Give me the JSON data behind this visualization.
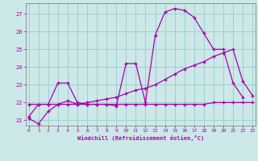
{
  "xlabel": "Windchill (Refroidissement éolien,°C)",
  "bg_color": "#cce8e8",
  "line_color": "#aa00aa",
  "grid_color": "#99cccc",
  "yticks": [
    21,
    22,
    23,
    24,
    25,
    26,
    27
  ],
  "xticks": [
    0,
    1,
    2,
    3,
    4,
    5,
    6,
    7,
    8,
    9,
    10,
    11,
    12,
    13,
    14,
    15,
    16,
    17,
    18,
    19,
    20,
    21,
    22,
    23
  ],
  "xlim": [
    -0.3,
    23.3
  ],
  "ylim": [
    20.7,
    27.6
  ],
  "line1_x": [
    0,
    1,
    2,
    3,
    4,
    5,
    6,
    7,
    8,
    9,
    10,
    11,
    12,
    13,
    14,
    15,
    16,
    17,
    18,
    19,
    20,
    21,
    22
  ],
  "line1_y": [
    21.2,
    21.9,
    21.9,
    23.1,
    23.1,
    22.0,
    21.9,
    21.9,
    21.9,
    21.8,
    24.2,
    24.2,
    22.0,
    25.8,
    27.1,
    27.3,
    27.2,
    26.8,
    25.9,
    25.0,
    25.0,
    23.1,
    22.3
  ],
  "line2_x": [
    0,
    1,
    2,
    3,
    4,
    5,
    6,
    7,
    8,
    9,
    10,
    11,
    12,
    13,
    14,
    15,
    16,
    17,
    18,
    19,
    20,
    21,
    22,
    23
  ],
  "line2_y": [
    21.9,
    21.9,
    21.9,
    21.9,
    21.9,
    21.9,
    21.9,
    21.9,
    21.9,
    21.9,
    21.9,
    21.9,
    21.9,
    21.9,
    21.9,
    21.9,
    21.9,
    21.9,
    21.9,
    22.0,
    22.0,
    22.0,
    22.0,
    22.0
  ],
  "line3_x": [
    0,
    1,
    2,
    3,
    4,
    5,
    6,
    7,
    8,
    9,
    10,
    11,
    12,
    13,
    14,
    15,
    16,
    17,
    18,
    19,
    20,
    21,
    22,
    23
  ],
  "line3_y": [
    21.1,
    20.8,
    21.5,
    21.9,
    22.1,
    21.9,
    22.0,
    22.1,
    22.2,
    22.3,
    22.5,
    22.7,
    22.8,
    23.0,
    23.3,
    23.6,
    23.9,
    24.1,
    24.3,
    24.6,
    24.8,
    25.0,
    23.2,
    22.4
  ]
}
